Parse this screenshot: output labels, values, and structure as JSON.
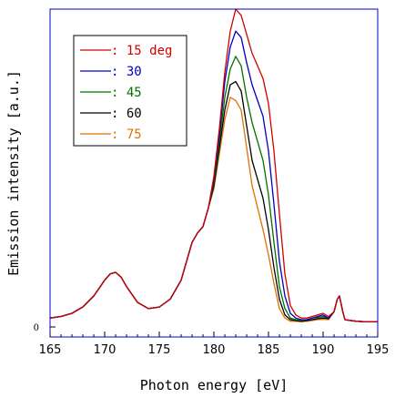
{
  "chart_data": {
    "type": "line",
    "xlabel": "Photon energy [eV]",
    "ylabel": "Emission intensity [a.u.]",
    "xlim": [
      165,
      195
    ],
    "ylim": [
      -0.04,
      1.0
    ],
    "xticks": [
      165,
      170,
      175,
      180,
      185,
      190,
      195
    ],
    "ytick_zero_label": "0",
    "grid": false,
    "legend_position": "top-left",
    "x": [
      165,
      166,
      167,
      168,
      169,
      170,
      170.5,
      171,
      171.5,
      172,
      173,
      174,
      175,
      176,
      177,
      177.5,
      178,
      178.5,
      179,
      179.5,
      180,
      180.5,
      181,
      181.5,
      182,
      182.5,
      183,
      183.5,
      184,
      184.5,
      185,
      185.5,
      186,
      186.5,
      187,
      187.5,
      188,
      188.5,
      189,
      189.5,
      190,
      190.5,
      191,
      191.3,
      191.5,
      191.8,
      192,
      193,
      194,
      195
    ],
    "series": [
      {
        "name": ": 15 deg",
        "color": "#d00000",
        "values": [
          0.02,
          0.025,
          0.035,
          0.055,
          0.09,
          0.14,
          0.16,
          0.165,
          0.15,
          0.12,
          0.07,
          0.05,
          0.055,
          0.08,
          0.14,
          0.2,
          0.26,
          0.29,
          0.31,
          0.37,
          0.47,
          0.62,
          0.8,
          0.93,
          1.0,
          0.98,
          0.92,
          0.86,
          0.82,
          0.78,
          0.7,
          0.55,
          0.35,
          0.16,
          0.06,
          0.03,
          0.02,
          0.02,
          0.025,
          0.03,
          0.035,
          0.025,
          0.04,
          0.08,
          0.09,
          0.04,
          0.015,
          0.01,
          0.008,
          0.008
        ]
      },
      {
        "name": ": 30",
        "color": "#0000c0",
        "values": [
          0.02,
          0.025,
          0.035,
          0.055,
          0.09,
          0.14,
          0.16,
          0.165,
          0.15,
          0.12,
          0.07,
          0.05,
          0.055,
          0.08,
          0.14,
          0.2,
          0.26,
          0.29,
          0.31,
          0.37,
          0.46,
          0.6,
          0.77,
          0.88,
          0.93,
          0.91,
          0.83,
          0.76,
          0.71,
          0.66,
          0.55,
          0.38,
          0.2,
          0.09,
          0.035,
          0.02,
          0.015,
          0.015,
          0.02,
          0.025,
          0.03,
          0.02,
          0.04,
          0.08,
          0.09,
          0.04,
          0.015,
          0.01,
          0.008,
          0.008
        ]
      },
      {
        "name": ": 45",
        "color": "#007000",
        "values": [
          0.02,
          0.025,
          0.035,
          0.055,
          0.09,
          0.14,
          0.16,
          0.165,
          0.15,
          0.12,
          0.07,
          0.05,
          0.055,
          0.08,
          0.14,
          0.2,
          0.26,
          0.29,
          0.31,
          0.37,
          0.45,
          0.58,
          0.72,
          0.81,
          0.85,
          0.82,
          0.72,
          0.64,
          0.58,
          0.52,
          0.41,
          0.26,
          0.12,
          0.05,
          0.02,
          0.015,
          0.012,
          0.015,
          0.02,
          0.022,
          0.025,
          0.02,
          0.04,
          0.08,
          0.09,
          0.04,
          0.015,
          0.01,
          0.008,
          0.008
        ]
      },
      {
        "name": ": 60",
        "color": "#000000",
        "values": [
          0.02,
          0.025,
          0.035,
          0.055,
          0.09,
          0.14,
          0.16,
          0.165,
          0.15,
          0.12,
          0.07,
          0.05,
          0.055,
          0.08,
          0.14,
          0.2,
          0.26,
          0.29,
          0.31,
          0.37,
          0.44,
          0.56,
          0.68,
          0.76,
          0.77,
          0.74,
          0.63,
          0.52,
          0.46,
          0.4,
          0.3,
          0.18,
          0.08,
          0.03,
          0.015,
          0.012,
          0.01,
          0.012,
          0.015,
          0.018,
          0.02,
          0.018,
          0.04,
          0.08,
          0.09,
          0.04,
          0.015,
          0.01,
          0.008,
          0.008
        ]
      },
      {
        "name": ": 75",
        "color": "#e07000",
        "values": [
          0.02,
          0.025,
          0.035,
          0.055,
          0.09,
          0.14,
          0.16,
          0.165,
          0.15,
          0.12,
          0.07,
          0.05,
          0.055,
          0.08,
          0.14,
          0.2,
          0.26,
          0.29,
          0.31,
          0.37,
          0.43,
          0.54,
          0.65,
          0.72,
          0.71,
          0.68,
          0.56,
          0.44,
          0.37,
          0.3,
          0.22,
          0.13,
          0.05,
          0.02,
          0.01,
          0.01,
          0.008,
          0.01,
          0.012,
          0.015,
          0.016,
          0.015,
          0.04,
          0.08,
          0.09,
          0.04,
          0.015,
          0.01,
          0.008,
          0.008
        ]
      }
    ]
  }
}
